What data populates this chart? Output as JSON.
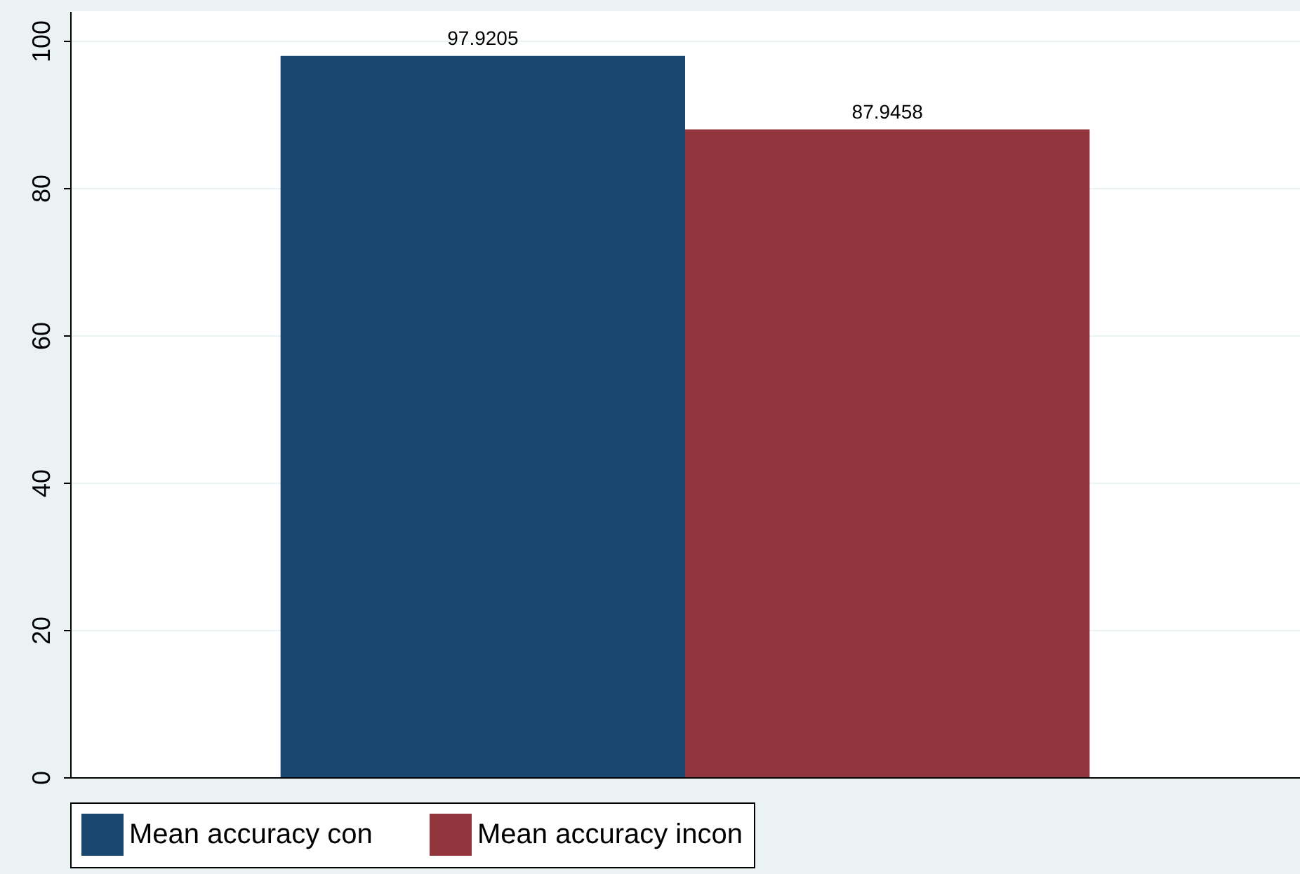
{
  "chart_data": {
    "type": "bar",
    "categories": [
      null
    ],
    "series": [
      {
        "name": "Mean accuracy con",
        "color": "#1a476f",
        "values": [
          97.9205
        ]
      },
      {
        "name": "Mean accuracy incon",
        "color": "#90353b",
        "values": [
          87.9458
        ]
      }
    ],
    "ylim": [
      0,
      104
    ],
    "yticks": [
      0,
      20,
      40,
      60,
      80,
      100
    ],
    "grid": "y",
    "data_labels": true,
    "legend": "bottom"
  }
}
